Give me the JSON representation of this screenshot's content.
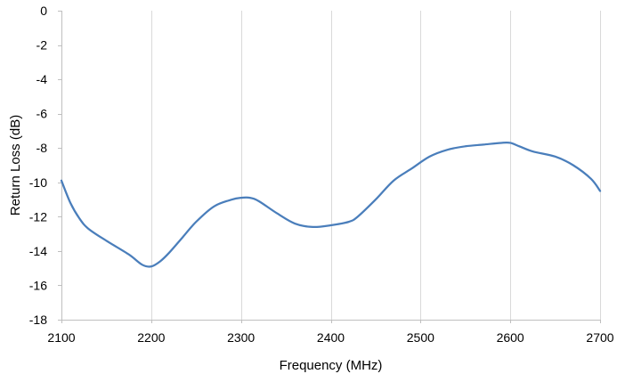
{
  "chart_data": {
    "type": "line",
    "title": "",
    "xlabel": "Frequency (MHz)",
    "ylabel": "Return Loss  (dB)",
    "xlim": [
      2100,
      2700
    ],
    "ylim": [
      -18,
      0
    ],
    "x_ticks": [
      2100,
      2200,
      2300,
      2400,
      2500,
      2600,
      2700
    ],
    "y_ticks": [
      0,
      -2,
      -4,
      -6,
      -8,
      -10,
      -12,
      -14,
      -16,
      -18
    ],
    "grid": {
      "vertical": true,
      "horizontal": false
    },
    "legend": "none",
    "colors": {
      "line": "#4a7ebb",
      "grid": "#d9d9d9",
      "axis": "#bfbfbf"
    },
    "series": [
      {
        "x": [
          2100,
          2110,
          2120,
          2130,
          2150,
          2175,
          2190,
          2200,
          2210,
          2220,
          2235,
          2250,
          2270,
          2290,
          2300,
          2310,
          2320,
          2340,
          2360,
          2380,
          2400,
          2420,
          2430,
          2450,
          2470,
          2490,
          2510,
          2530,
          2550,
          2570,
          2590,
          2600,
          2610,
          2625,
          2650,
          2670,
          2690,
          2700
        ],
        "y": [
          -9.9,
          -11.2,
          -12.1,
          -12.7,
          -13.4,
          -14.2,
          -14.8,
          -14.9,
          -14.6,
          -14.1,
          -13.2,
          -12.3,
          -11.4,
          -11.0,
          -10.9,
          -10.9,
          -11.1,
          -11.8,
          -12.4,
          -12.6,
          -12.5,
          -12.3,
          -12.0,
          -11.0,
          -9.9,
          -9.2,
          -8.5,
          -8.1,
          -7.9,
          -7.8,
          -7.7,
          -7.7,
          -7.9,
          -8.2,
          -8.5,
          -9.0,
          -9.8,
          -10.5
        ]
      }
    ]
  }
}
